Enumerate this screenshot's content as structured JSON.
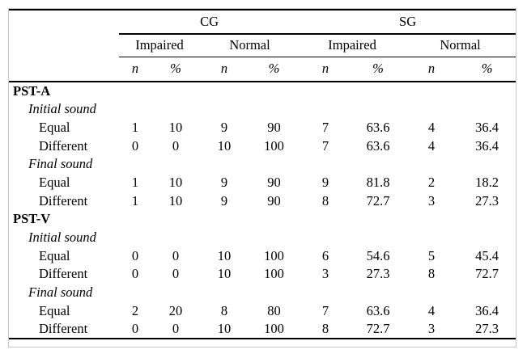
{
  "figure": {
    "background": "#ffffff",
    "frame_border_color": "#c9c9c9",
    "rule_color": "#000000"
  },
  "table": {
    "groups": [
      "CG",
      "SG"
    ],
    "subgroups": [
      "Impaired",
      "Normal",
      "Impaired",
      "Normal"
    ],
    "measures": [
      "n",
      "%",
      "n",
      "%",
      "n",
      "%",
      "n",
      "%"
    ],
    "rows": [
      {
        "type": "section",
        "label": "PST-A"
      },
      {
        "type": "subsection",
        "label": "Initial sound"
      },
      {
        "type": "data",
        "label": "Equal",
        "values": [
          "1",
          "10",
          "9",
          "90",
          "7",
          "63.6",
          "4",
          "36.4"
        ]
      },
      {
        "type": "data",
        "label": "Different",
        "values": [
          "0",
          "0",
          "10",
          "100",
          "7",
          "63.6",
          "4",
          "36.4"
        ]
      },
      {
        "type": "subsection",
        "label": "Final sound"
      },
      {
        "type": "data",
        "label": "Equal",
        "values": [
          "1",
          "10",
          "9",
          "90",
          "9",
          "81.8",
          "2",
          "18.2"
        ]
      },
      {
        "type": "data",
        "label": "Different",
        "values": [
          "1",
          "10",
          "9",
          "90",
          "8",
          "72.7",
          "3",
          "27.3"
        ]
      },
      {
        "type": "section",
        "label": "PST-V"
      },
      {
        "type": "subsection",
        "label": "Initial sound"
      },
      {
        "type": "data",
        "label": "Equal",
        "values": [
          "0",
          "0",
          "10",
          "100",
          "6",
          "54.6",
          "5",
          "45.4"
        ]
      },
      {
        "type": "data",
        "label": "Different",
        "values": [
          "0",
          "0",
          "10",
          "100",
          "3",
          "27.3",
          "8",
          "72.7"
        ]
      },
      {
        "type": "subsection",
        "label": "Final sound"
      },
      {
        "type": "data",
        "label": "Equal",
        "values": [
          "2",
          "20",
          "8",
          "80",
          "7",
          "63.6",
          "4",
          "36.4"
        ]
      },
      {
        "type": "data",
        "label": "Different",
        "values": [
          "0",
          "0",
          "10",
          "100",
          "8",
          "72.7",
          "3",
          "27.3"
        ]
      }
    ]
  }
}
